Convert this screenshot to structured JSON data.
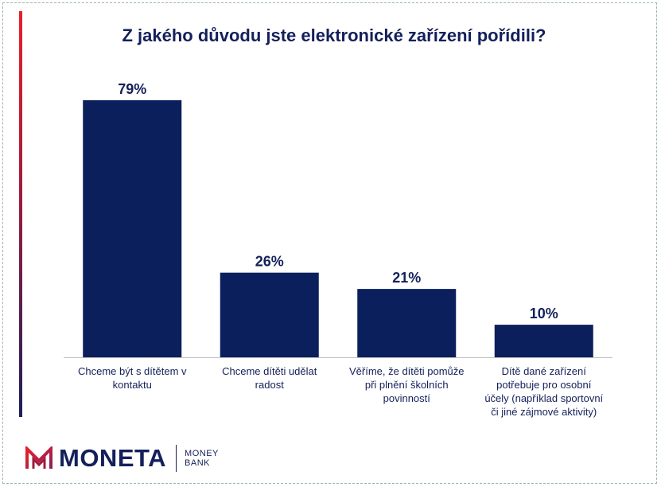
{
  "chart_data": {
    "type": "bar",
    "title": "Z jakého důvodu jste elektronické zařízení pořídili?",
    "categories": [
      "Chceme být s dítětem v kontaktu",
      "Chceme dítěti udělat radost",
      "Věříme, že dítěti pomůže při plnění školních povinností",
      "Dítě dané zařízení potřebuje pro osobní účely (například sportovní či jiné zájmové aktivity)"
    ],
    "values": [
      79,
      26,
      21,
      10
    ],
    "value_labels": [
      "79%",
      "26%",
      "21%",
      "10%"
    ],
    "ylim": [
      0,
      100
    ],
    "bar_color": "#0b1f5c",
    "grid": false
  },
  "logo": {
    "name": "MONETA",
    "sub_line1": "MONEY",
    "sub_line2": "BANK"
  },
  "colors": {
    "text": "#14205a",
    "accent_top": "#e8202a",
    "accent_bottom": "#1a1f5c"
  }
}
